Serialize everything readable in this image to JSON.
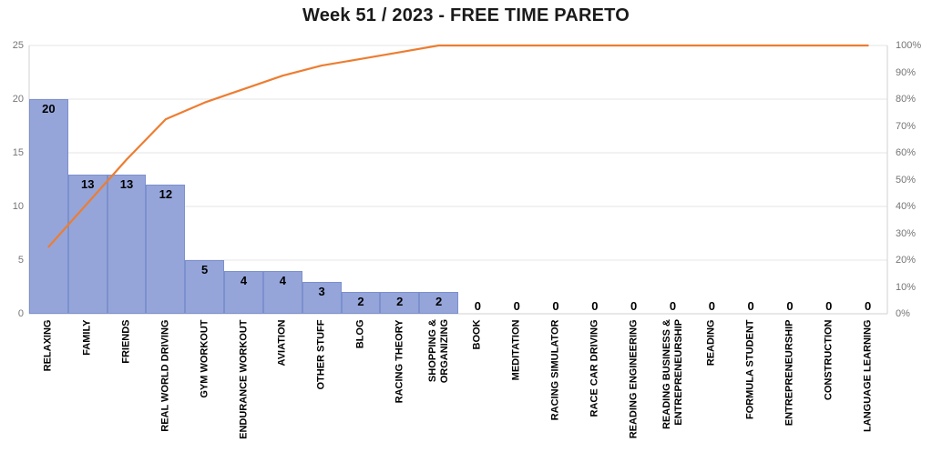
{
  "title": "Week 51 / 2023 - FREE TIME PARETO",
  "chart_data": {
    "type": "bar",
    "subtype": "pareto",
    "title": "Week 51 / 2023 - FREE TIME PARETO",
    "categories": [
      "RELAXING",
      "FAMILY",
      "FRIENDS",
      "REAL WORLD DRIVING",
      "GYM WORKOUT",
      "ENDURANCE WORKOUT",
      "AVIATION",
      "OTHER STUFF",
      "BLOG",
      "RACING THEORY",
      "SHOPPING &\nORGANIZING",
      "BOOK",
      "MEDITATION",
      "RACING SIMULATOR",
      "RACE CAR DRIVING",
      "READING ENGINEERING",
      "READING BUSINESS &\nENTREPRENEURSHIP",
      "READING",
      "FORMULA STUDENT",
      "ENTREPRENEURSHIP",
      "CONSTRUCTION",
      "LANGUAGE LEARNING"
    ],
    "series": [
      {
        "name": "hours",
        "type": "bar",
        "values": [
          20,
          13,
          13,
          12,
          5,
          4,
          4,
          3,
          2,
          2,
          2,
          0,
          0,
          0,
          0,
          0,
          0,
          0,
          0,
          0,
          0,
          0
        ]
      },
      {
        "name": "cumulative-percent",
        "type": "line",
        "values": [
          25,
          41.25,
          57.5,
          72.5,
          78.75,
          83.75,
          88.75,
          92.5,
          95,
          97.5,
          100,
          100,
          100,
          100,
          100,
          100,
          100,
          100,
          100,
          100,
          100,
          100
        ]
      }
    ],
    "left_axis": {
      "min": 0,
      "max": 25,
      "ticks": [
        0,
        5,
        10,
        15,
        20,
        25
      ]
    },
    "right_axis": {
      "min": 0,
      "max": 100,
      "ticks": [
        "0%",
        "10%",
        "20%",
        "30%",
        "40%",
        "50%",
        "60%",
        "70%",
        "80%",
        "90%",
        "100%"
      ]
    },
    "grid": true,
    "legend": "none",
    "colors": {
      "bar_fill": "#95A5D9",
      "bar_border": "#7C90CE",
      "line": "#ED7D31",
      "gridline": "#E4E4E4",
      "plot_border": "#D2D2D2",
      "axis_text": "#757575",
      "label_text": "#000000",
      "title_text": "#1A1A1A"
    }
  }
}
